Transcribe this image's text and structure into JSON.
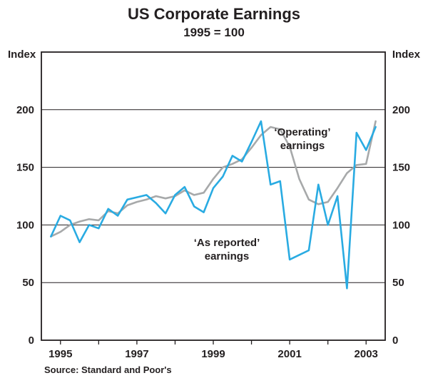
{
  "chart_data": {
    "type": "line",
    "title": "US Corporate Earnings",
    "subtitle": "1995 = 100",
    "ylabel_left": "Index",
    "ylabel_right": "Index",
    "source": "Source: Standard and Poor's",
    "xlim": [
      1994.5,
      2003.5
    ],
    "ylim": [
      0,
      250
    ],
    "xticks": [
      1995,
      1997,
      1999,
      2001,
      2003
    ],
    "yticks": [
      0,
      50,
      100,
      150,
      200
    ],
    "grid": "horizontal",
    "legend": "in-plot annotations",
    "x": [
      1994.75,
      1995.0,
      1995.25,
      1995.5,
      1995.75,
      1996.0,
      1996.25,
      1996.5,
      1996.75,
      1997.0,
      1997.25,
      1997.5,
      1997.75,
      1998.0,
      1998.25,
      1998.5,
      1998.75,
      1999.0,
      1999.25,
      1999.5,
      1999.75,
      2000.0,
      2000.25,
      2000.5,
      2000.75,
      2001.0,
      2001.25,
      2001.5,
      2001.75,
      2002.0,
      2002.25,
      2002.5,
      2002.75,
      2003.0,
      2003.25
    ],
    "series": [
      {
        "name": "‘Operating’ earnings",
        "color": "#a7a9aa",
        "values": [
          90,
          94,
          100,
          103,
          105,
          104,
          112,
          110,
          117,
          120,
          122,
          125,
          123,
          125,
          130,
          126,
          128,
          140,
          150,
          153,
          157,
          167,
          178,
          185,
          183,
          168,
          140,
          122,
          118,
          120,
          132,
          145,
          152,
          153,
          190
        ]
      },
      {
        "name": "‘As reported’ earnings",
        "color": "#29abe2",
        "values": [
          90,
          108,
          104,
          85,
          100,
          97,
          114,
          108,
          122,
          124,
          126,
          119,
          110,
          126,
          133,
          116,
          111,
          132,
          142,
          160,
          155,
          172,
          190,
          135,
          138,
          70,
          74,
          78,
          135,
          100,
          125,
          45,
          180,
          165,
          185
        ]
      }
    ],
    "annotations": {
      "operating": {
        "line1": "‘Operating’",
        "line2": "earnings"
      },
      "as_reported": {
        "line1": "‘As reported’",
        "line2": "earnings"
      }
    }
  }
}
